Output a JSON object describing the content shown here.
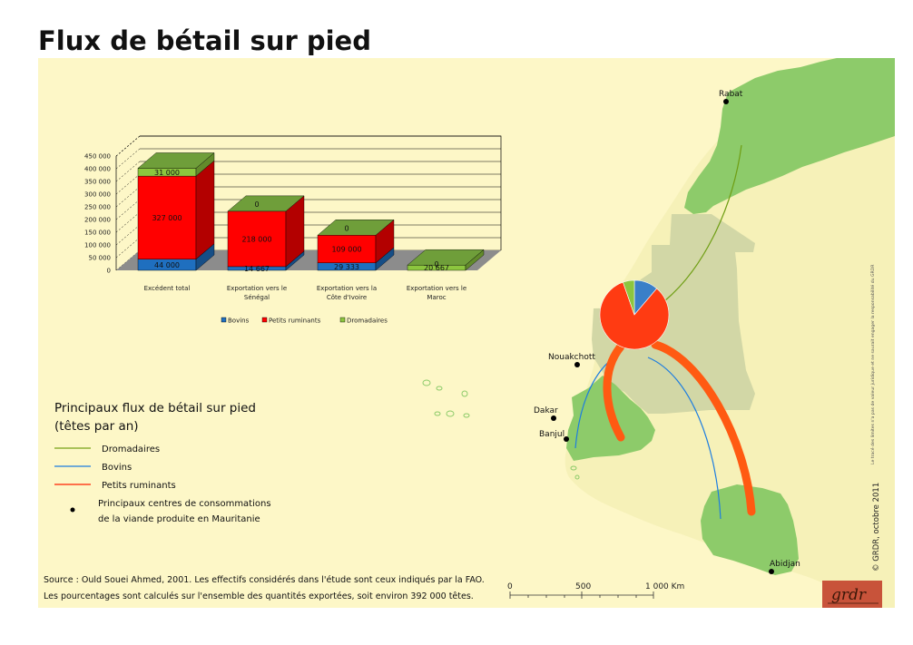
{
  "page": {
    "title": "Flux de bétail sur pied"
  },
  "chart_data": {
    "type": "bar",
    "stacked": true,
    "three_d": true,
    "categories": [
      "Excédent total",
      "Exportation vers le Sénégal",
      "Exportation vers la Côte d'Ivoire",
      "Exportation vers le Maroc"
    ],
    "series": [
      {
        "name": "Bovins",
        "values": [
          44000,
          14667,
          29333,
          0
        ],
        "labels": [
          "44 000",
          "14 667",
          "29 333",
          ""
        ],
        "color": "#1f6fbf"
      },
      {
        "name": "Petits ruminants",
        "values": [
          327000,
          218000,
          109000,
          0
        ],
        "labels": [
          "327 000",
          "218 000",
          "109 000",
          "0"
        ],
        "color": "#ff0000"
      },
      {
        "name": "Dromadaires",
        "values": [
          31000,
          0,
          0,
          20667
        ],
        "labels": [
          "31 000",
          "0",
          "0",
          "20 667"
        ],
        "color": "#8cc63e"
      }
    ],
    "yticks": [
      "0",
      "50 000",
      "100 000",
      "150 000",
      "200 000",
      "250 000",
      "300 000",
      "350 000",
      "400 000",
      "450 000"
    ],
    "ylim": [
      0,
      450000
    ],
    "grid": true,
    "legend_position": "bottom"
  },
  "map": {
    "cities": [
      {
        "name": "Rabat"
      },
      {
        "name": "Nouakchott"
      },
      {
        "name": "Dakar"
      },
      {
        "name": "Banjul"
      },
      {
        "name": "Abidjan"
      }
    ],
    "pie": {
      "slices": [
        {
          "name": "Bovins",
          "value": 44000,
          "color": "#3a7fc8"
        },
        {
          "name": "Petits ruminants",
          "value": 327000,
          "color": "#ff3b12"
        },
        {
          "name": "Dromadaires",
          "value": 21000,
          "color": "#8cc63e"
        }
      ]
    },
    "colors": {
      "destination_land": "#8dcb6a",
      "mauritania": "#d2d7a6",
      "other_land": "#f6f1b8",
      "sea": "#fdf7c7",
      "flow_small_ruminants": "#ff5a12",
      "flow_cattle": "#1d7de0",
      "flow_camels": "#6f9e14"
    }
  },
  "legend": {
    "title_line1": "Principaux flux de bétail sur pied",
    "title_line2": "(têtes par an)",
    "items": [
      {
        "label": "Dromadaires",
        "color": "#7aa21a"
      },
      {
        "label": "Bovins",
        "color": "#1d7de0"
      },
      {
        "label": "Petits ruminants",
        "color": "#ff2000"
      }
    ],
    "point_line1": "Principaux centres de consommations",
    "point_line2": "de la viande produite en Mauritanie"
  },
  "source": {
    "line1": "Source : Ould Souei Ahmed, 2001. Les effectifs considérés dans l'étude sont ceux indiqués par la FAO.",
    "line2": "Les pourcentages sont calculés sur l'ensemble des quantités exportées, soit environ 392 000 têtes."
  },
  "scale": {
    "labels": [
      "0",
      "500",
      "1 000  Km"
    ]
  },
  "credits": {
    "copyright": "© GRDR, octobre 2011",
    "disclaimer": "Le tracé des limites n'a pas de valeur juridique et ne saurait engager la responsabilité du GRDR",
    "logo_text": "grdr"
  }
}
